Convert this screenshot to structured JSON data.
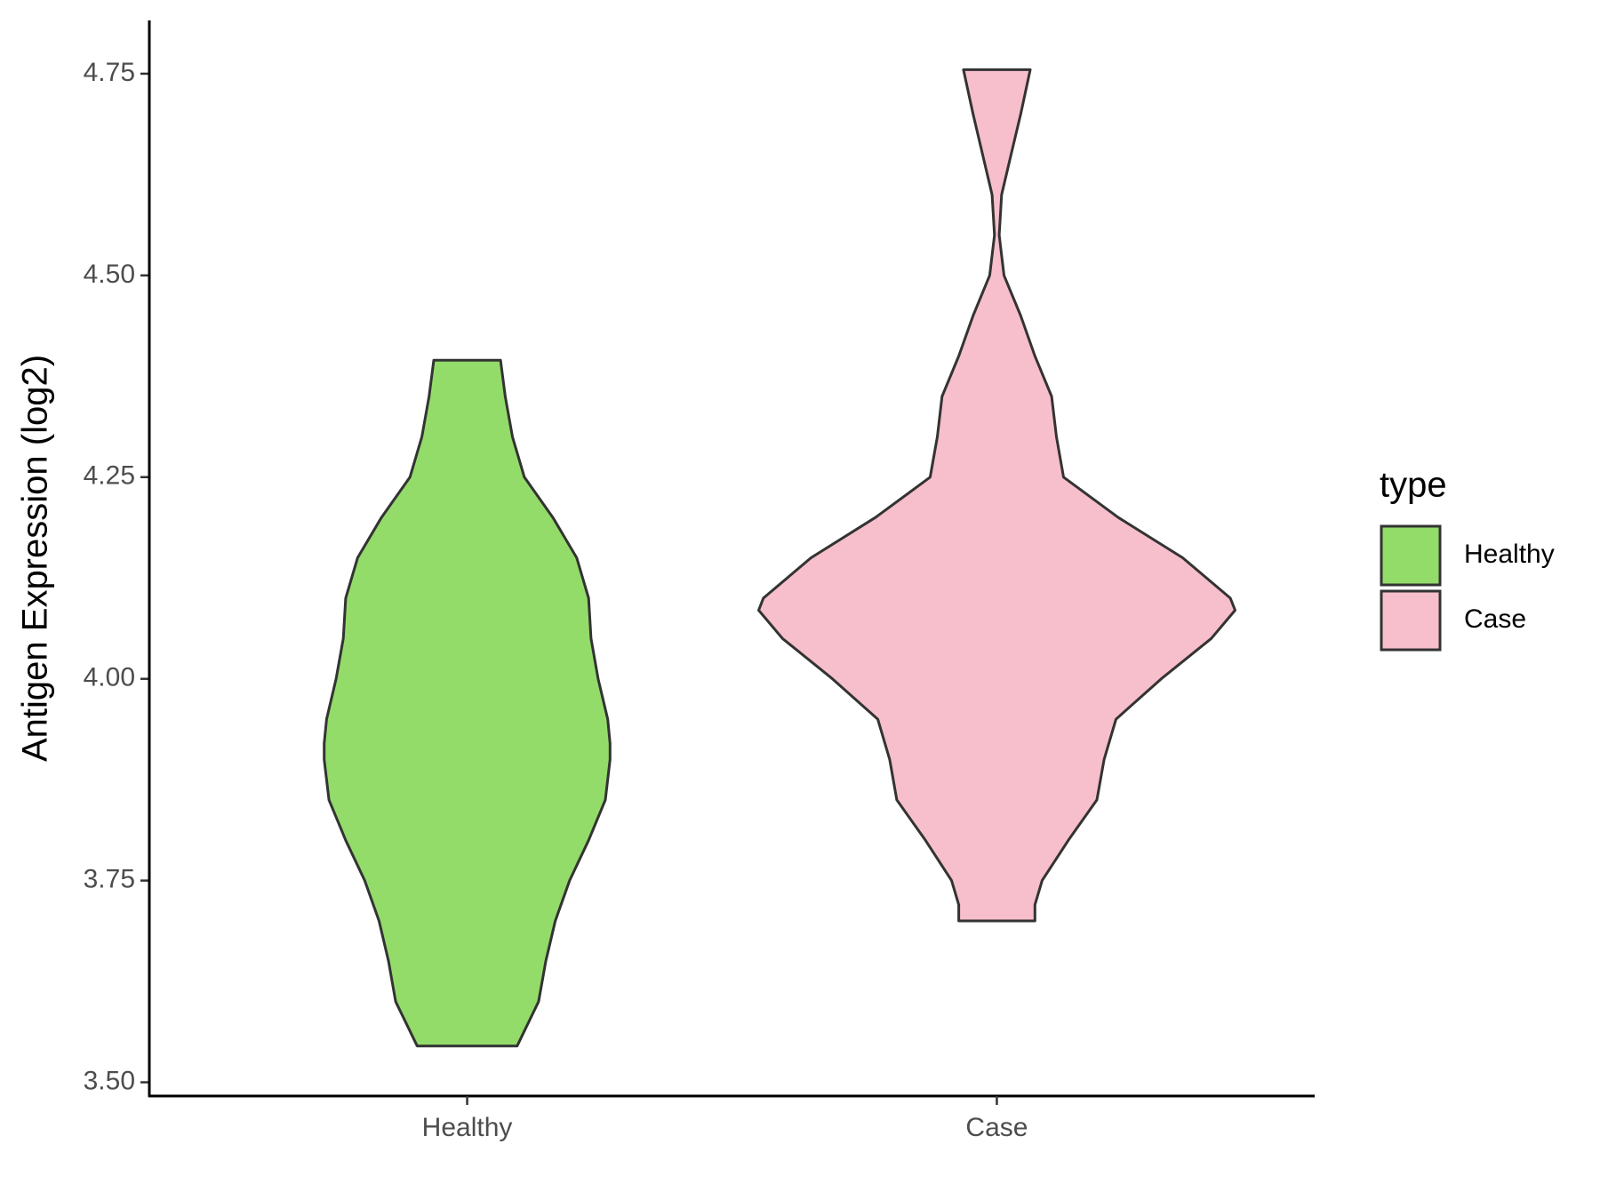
{
  "chart_data": {
    "type": "violin",
    "ylabel": "Antigen Expression (log2)",
    "categories": [
      "Healthy",
      "Case"
    ],
    "legend_title": "type",
    "legend_position": "right",
    "ylim": [
      3.483,
      4.816
    ],
    "yticks": [
      {
        "value": 3.5,
        "label": "3.50"
      },
      3.75,
      {
        "value": 4,
        "label": "4.00"
      },
      4.25,
      {
        "value": 4.5,
        "label": "4.50"
      },
      4.75
    ],
    "series": [
      {
        "name": "Healthy",
        "color": "#93dc6a",
        "y": [
          3.545,
          3.6,
          3.65,
          3.7,
          3.75,
          3.8,
          3.85,
          3.9,
          3.92,
          3.95,
          4.0,
          4.05,
          4.1,
          4.15,
          4.2,
          4.25,
          4.3,
          4.35,
          4.395
        ],
        "widths": [
          0.21,
          0.3,
          0.33,
          0.37,
          0.43,
          0.51,
          0.58,
          0.6,
          0.6,
          0.59,
          0.55,
          0.52,
          0.51,
          0.46,
          0.36,
          0.24,
          0.19,
          0.16,
          0.14
        ]
      },
      {
        "name": "Case",
        "color": "#f7bfcb",
        "y": [
          3.7,
          3.72,
          3.75,
          3.8,
          3.85,
          3.9,
          3.95,
          4.0,
          4.05,
          4.085,
          4.1,
          4.15,
          4.2,
          4.25,
          4.3,
          4.35,
          4.4,
          4.45,
          4.5,
          4.55,
          4.6,
          4.65,
          4.7,
          4.755
        ],
        "widths": [
          0.16,
          0.16,
          0.19,
          0.3,
          0.42,
          0.45,
          0.5,
          0.69,
          0.9,
          1.0,
          0.98,
          0.78,
          0.51,
          0.28,
          0.25,
          0.23,
          0.16,
          0.1,
          0.03,
          0.01,
          0.02,
          0.06,
          0.1,
          0.14
        ]
      }
    ]
  }
}
